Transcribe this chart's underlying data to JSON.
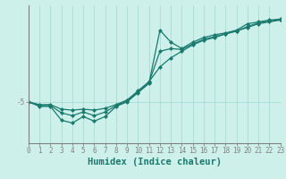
{
  "xlabel": "Humidex (Indice chaleur)",
  "bg_color": "#cef0ea",
  "line_color": "#1a7a6e",
  "grid_color": "#9dd8d0",
  "axis_color": "#808080",
  "x_data": [
    0,
    1,
    2,
    3,
    4,
    5,
    6,
    7,
    8,
    9,
    10,
    11,
    12,
    13,
    14,
    15,
    16,
    17,
    18,
    19,
    20,
    21,
    22,
    23
  ],
  "y_line1": [
    -5.0,
    -5.5,
    -5.5,
    -7.0,
    -7.3,
    -6.6,
    -7.1,
    -6.6,
    -5.5,
    -5.0,
    -4.0,
    -3.0,
    2.8,
    1.5,
    0.8,
    1.5,
    2.0,
    2.3,
    2.5,
    2.8,
    3.5,
    3.7,
    3.9,
    4.0
  ],
  "y_line2": [
    -5.0,
    -5.3,
    -5.3,
    -5.8,
    -5.9,
    -5.8,
    -5.9,
    -5.7,
    -5.3,
    -4.8,
    -3.8,
    -2.8,
    -1.2,
    -0.2,
    0.5,
    1.2,
    1.7,
    2.0,
    2.4,
    2.7,
    3.1,
    3.5,
    3.7,
    3.9
  ],
  "y_line3": [
    -5.0,
    -5.4,
    -5.4,
    -6.2,
    -6.5,
    -6.1,
    -6.5,
    -6.1,
    -5.4,
    -4.9,
    -3.9,
    -2.9,
    0.5,
    0.8,
    0.7,
    1.3,
    1.8,
    2.1,
    2.4,
    2.7,
    3.2,
    3.6,
    3.8,
    3.95
  ],
  "ylim": [
    -9.5,
    5.5
  ],
  "xlim": [
    0,
    23
  ],
  "yticks": [
    -5
  ],
  "xticks": [
    0,
    1,
    2,
    3,
    4,
    5,
    6,
    7,
    8,
    9,
    10,
    11,
    12,
    13,
    14,
    15,
    16,
    17,
    18,
    19,
    20,
    21,
    22,
    23
  ],
  "marker": "D",
  "markersize": 2.0,
  "linewidth": 0.9,
  "tick_fontsize": 5.5,
  "xlabel_fontsize": 7.5
}
